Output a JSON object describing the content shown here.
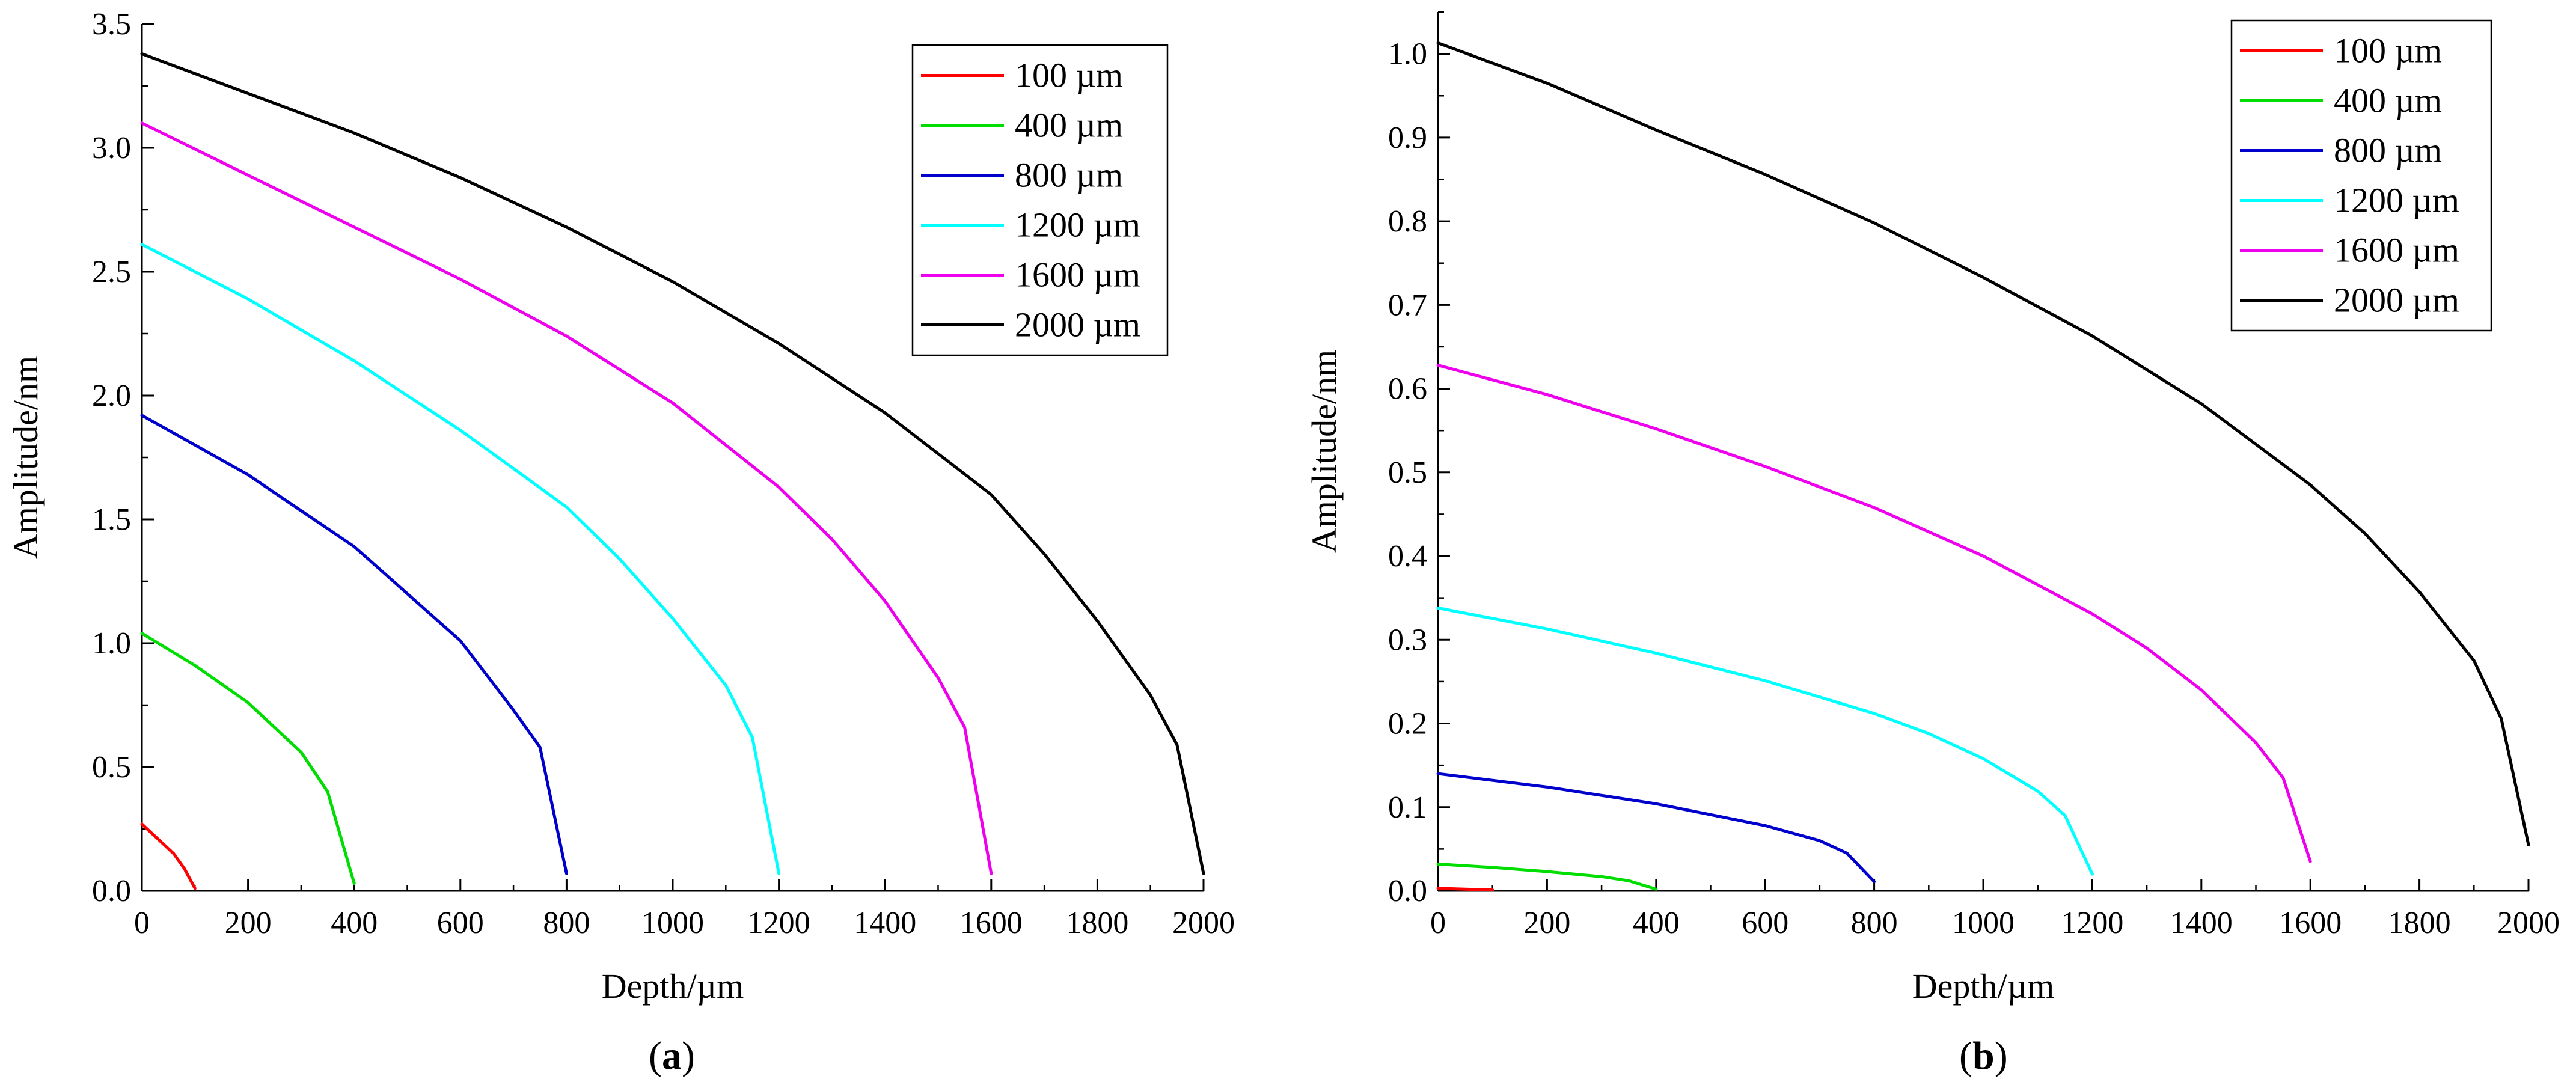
{
  "chart_data": [
    {
      "id": "a",
      "type": "line",
      "caption_open": "(",
      "caption_letter": "a",
      "caption_close": ")",
      "xlabel": "Depth/µm",
      "ylabel": "Amplitude/nm",
      "xlim": [
        0,
        2000
      ],
      "ylim": [
        0,
        3.5
      ],
      "xticks": [
        0,
        200,
        400,
        600,
        800,
        1000,
        1200,
        1400,
        1600,
        1800,
        2000
      ],
      "xtick_labels": [
        "0",
        "200",
        "400",
        "600",
        "800",
        "1000",
        "1200",
        "1400",
        "1600",
        "1800",
        "2000"
      ],
      "yticks": [
        0,
        0.5,
        1.0,
        1.5,
        2.0,
        2.5,
        3.0,
        3.5
      ],
      "ytick_labels": [
        "0.0",
        "0.5",
        "1.0",
        "1.5",
        "2.0",
        "2.5",
        "3.0",
        "3.5"
      ],
      "legend_position": "top-right",
      "grid": false,
      "series": [
        {
          "name": "100 µm",
          "color": "#ff0000",
          "x": [
            0,
            20,
            40,
            60,
            80,
            100
          ],
          "y": [
            0.27,
            0.23,
            0.19,
            0.15,
            0.09,
            0.01
          ]
        },
        {
          "name": "400 µm",
          "color": "#00dd00",
          "x": [
            0,
            100,
            200,
            300,
            350,
            400
          ],
          "y": [
            1.04,
            0.91,
            0.76,
            0.56,
            0.4,
            0.03
          ]
        },
        {
          "name": "800 µm",
          "color": "#0000cc",
          "x": [
            0,
            200,
            400,
            600,
            700,
            750,
            800
          ],
          "y": [
            1.92,
            1.68,
            1.39,
            1.01,
            0.73,
            0.58,
            0.07
          ]
        },
        {
          "name": "1200 µm",
          "color": "#00ffff",
          "x": [
            0,
            200,
            400,
            600,
            800,
            900,
            1000,
            1100,
            1150,
            1200
          ],
          "y": [
            2.61,
            2.39,
            2.14,
            1.86,
            1.55,
            1.34,
            1.1,
            0.83,
            0.62,
            0.07
          ]
        },
        {
          "name": "1600 µm",
          "color": "#ee00ee",
          "x": [
            0,
            200,
            400,
            600,
            800,
            1000,
            1200,
            1300,
            1400,
            1500,
            1550,
            1600
          ],
          "y": [
            3.1,
            2.89,
            2.68,
            2.47,
            2.24,
            1.97,
            1.63,
            1.42,
            1.17,
            0.86,
            0.66,
            0.07
          ]
        },
        {
          "name": "2000 µm",
          "color": "#000000",
          "x": [
            0,
            200,
            400,
            600,
            800,
            1000,
            1200,
            1400,
            1600,
            1700,
            1800,
            1900,
            1950,
            2000
          ],
          "y": [
            3.38,
            3.22,
            3.06,
            2.88,
            2.68,
            2.46,
            2.21,
            1.93,
            1.6,
            1.36,
            1.09,
            0.79,
            0.59,
            0.07
          ]
        }
      ]
    },
    {
      "id": "b",
      "type": "line",
      "caption_open": "(",
      "caption_letter": "b",
      "caption_close": ")",
      "xlabel": "Depth/µm",
      "ylabel": "Amplitude/nm",
      "xlim": [
        0,
        2000
      ],
      "ylim": [
        0,
        1.05
      ],
      "xticks": [
        0,
        200,
        400,
        600,
        800,
        1000,
        1200,
        1400,
        1600,
        1800,
        2000
      ],
      "xtick_labels": [
        "0",
        "200",
        "400",
        "600",
        "800",
        "1000",
        "1200",
        "1400",
        "1600",
        "1800",
        "2000"
      ],
      "yticks": [
        0,
        0.1,
        0.2,
        0.3,
        0.4,
        0.5,
        0.6,
        0.7,
        0.8,
        0.9,
        1.0
      ],
      "ytick_labels": [
        "0.0",
        "0.1",
        "0.2",
        "0.3",
        "0.4",
        "0.5",
        "0.6",
        "0.7",
        "0.8",
        "0.9",
        "1.0"
      ],
      "legend_position": "top-right",
      "grid": false,
      "series": [
        {
          "name": "100 µm",
          "color": "#ff0000",
          "x": [
            0,
            50,
            100
          ],
          "y": [
            0.003,
            0.002,
            0.001
          ]
        },
        {
          "name": "400 µm",
          "color": "#00dd00",
          "x": [
            0,
            100,
            200,
            300,
            350,
            400
          ],
          "y": [
            0.032,
            0.028,
            0.023,
            0.017,
            0.012,
            0.002
          ]
        },
        {
          "name": "800 µm",
          "color": "#0000cc",
          "x": [
            0,
            200,
            400,
            600,
            700,
            750,
            800
          ],
          "y": [
            0.14,
            0.124,
            0.104,
            0.078,
            0.06,
            0.045,
            0.011
          ]
        },
        {
          "name": "1200 µm",
          "color": "#00ffff",
          "x": [
            0,
            200,
            400,
            600,
            800,
            900,
            1000,
            1100,
            1150,
            1200
          ],
          "y": [
            0.338,
            0.313,
            0.284,
            0.251,
            0.212,
            0.188,
            0.158,
            0.119,
            0.09,
            0.02
          ]
        },
        {
          "name": "1600 µm",
          "color": "#ee00ee",
          "x": [
            0,
            200,
            400,
            600,
            800,
            1000,
            1200,
            1300,
            1400,
            1500,
            1550,
            1600
          ],
          "y": [
            0.628,
            0.593,
            0.552,
            0.507,
            0.458,
            0.4,
            0.331,
            0.29,
            0.24,
            0.177,
            0.135,
            0.035
          ]
        },
        {
          "name": "2000 µm",
          "color": "#000000",
          "x": [
            0,
            200,
            400,
            600,
            800,
            1000,
            1200,
            1400,
            1600,
            1700,
            1800,
            1900,
            1950,
            2000
          ],
          "y": [
            1.013,
            0.965,
            0.909,
            0.856,
            0.798,
            0.733,
            0.663,
            0.582,
            0.485,
            0.427,
            0.357,
            0.275,
            0.206,
            0.055
          ]
        }
      ]
    }
  ]
}
